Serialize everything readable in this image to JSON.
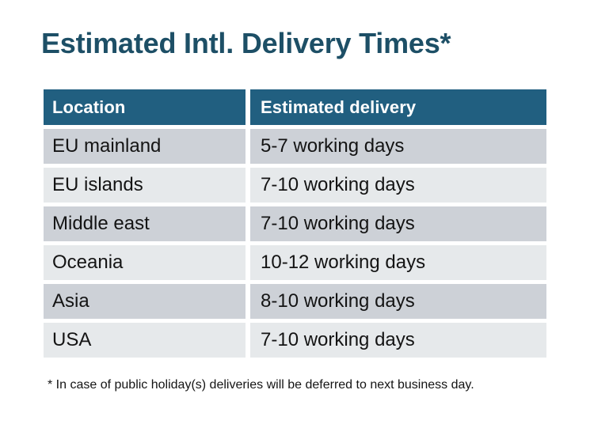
{
  "page": {
    "title": "Estimated Intl. Delivery Times*",
    "footnote": "* In case of public holiday(s) deliveries will be deferred to next business day."
  },
  "table": {
    "headers": [
      "Location",
      "Estimated delivery"
    ],
    "rows": [
      {
        "location": "EU mainland",
        "delivery": "5-7 working days"
      },
      {
        "location": "EU islands",
        "delivery": "7-10 working days"
      },
      {
        "location": "Middle east",
        "delivery": "7-10 working days"
      },
      {
        "location": "Oceania",
        "delivery": "10-12 working days"
      },
      {
        "location": "Asia",
        "delivery": "8-10 working days"
      },
      {
        "location": "USA",
        "delivery": "7-10 working days"
      }
    ]
  },
  "colors": {
    "title": "#1d4f66",
    "header_bg": "#215f80",
    "header_text": "#ffffff",
    "row_dark": "#cdd1d7",
    "row_light": "#e6e9eb",
    "body_text": "#141414"
  }
}
